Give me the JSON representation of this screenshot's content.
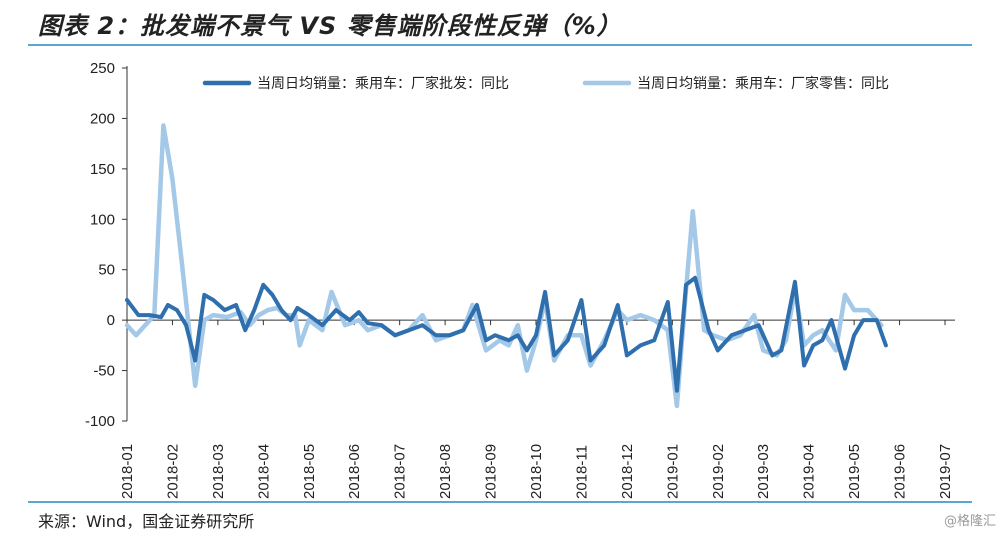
{
  "header": {
    "title": "图表 2：批发端不景气 VS 零售端阶段性反弹（%）"
  },
  "footer": {
    "source": "来源：Wind，国金证券研究所",
    "watermark": "@格隆汇"
  },
  "colors": {
    "series1": "#2f6fad",
    "series2": "#a3c8e8",
    "rule": "#5aa6d6"
  },
  "chart_data": {
    "type": "line",
    "ylim": [
      -100,
      250
    ],
    "yticks": [
      -100,
      -50,
      0,
      50,
      100,
      150,
      200,
      250
    ],
    "xticks": [
      "2018-01",
      "2018-02",
      "2018-03",
      "2018-04",
      "2018-05",
      "2018-06",
      "2018-07",
      "2018-08",
      "2018-09",
      "2018-10",
      "2018-11",
      "2018-12",
      "2019-01",
      "2019-02",
      "2019-03",
      "2019-04",
      "2019-05",
      "2019-06",
      "2019-07"
    ],
    "legend_position": "top",
    "series": [
      {
        "name": "当周日均销量：乘用车：厂家批发：同比",
        "points": [
          [
            0,
            20
          ],
          [
            0.25,
            5
          ],
          [
            0.5,
            5
          ],
          [
            0.75,
            3
          ],
          [
            0.9,
            15
          ],
          [
            1.1,
            10
          ],
          [
            1.3,
            -5
          ],
          [
            1.5,
            -40
          ],
          [
            1.7,
            25
          ],
          [
            1.9,
            20
          ],
          [
            2.15,
            10
          ],
          [
            2.4,
            15
          ],
          [
            2.6,
            -10
          ],
          [
            2.8,
            10
          ],
          [
            3.0,
            35
          ],
          [
            3.2,
            25
          ],
          [
            3.4,
            10
          ],
          [
            3.6,
            0
          ],
          [
            3.75,
            12
          ],
          [
            4.0,
            5
          ],
          [
            4.3,
            -5
          ],
          [
            4.6,
            10
          ],
          [
            4.9,
            0
          ],
          [
            5.1,
            8
          ],
          [
            5.3,
            -3
          ],
          [
            5.6,
            -5
          ],
          [
            5.9,
            -15
          ],
          [
            6.2,
            -10
          ],
          [
            6.5,
            -5
          ],
          [
            6.8,
            -15
          ],
          [
            7.1,
            -15
          ],
          [
            7.4,
            -10
          ],
          [
            7.7,
            15
          ],
          [
            7.9,
            -20
          ],
          [
            8.1,
            -15
          ],
          [
            8.4,
            -20
          ],
          [
            8.6,
            -15
          ],
          [
            8.8,
            -30
          ],
          [
            9.0,
            -15
          ],
          [
            9.2,
            28
          ],
          [
            9.4,
            -35
          ],
          [
            9.7,
            -20
          ],
          [
            10.0,
            20
          ],
          [
            10.2,
            -40
          ],
          [
            10.5,
            -25
          ],
          [
            10.8,
            15
          ],
          [
            11.0,
            -35
          ],
          [
            11.3,
            -25
          ],
          [
            11.6,
            -20
          ],
          [
            11.9,
            18
          ],
          [
            12.1,
            -70
          ],
          [
            12.3,
            35
          ],
          [
            12.5,
            42
          ],
          [
            12.8,
            -10
          ],
          [
            13.0,
            -30
          ],
          [
            13.3,
            -15
          ],
          [
            13.6,
            -10
          ],
          [
            13.9,
            -5
          ],
          [
            14.2,
            -35
          ],
          [
            14.4,
            -30
          ],
          [
            14.7,
            38
          ],
          [
            14.9,
            -45
          ],
          [
            15.1,
            -25
          ],
          [
            15.3,
            -20
          ],
          [
            15.5,
            0
          ],
          [
            15.8,
            -48
          ],
          [
            16.0,
            -15
          ],
          [
            16.2,
            0
          ],
          [
            16.5,
            0
          ],
          [
            16.7,
            -25
          ]
        ]
      },
      {
        "name": "当周日均销量：乘用车：厂家零售：同比",
        "points": [
          [
            0,
            -5
          ],
          [
            0.2,
            -15
          ],
          [
            0.4,
            -5
          ],
          [
            0.6,
            5
          ],
          [
            0.8,
            193
          ],
          [
            1.0,
            140
          ],
          [
            1.2,
            60
          ],
          [
            1.5,
            -65
          ],
          [
            1.7,
            0
          ],
          [
            1.9,
            5
          ],
          [
            2.2,
            3
          ],
          [
            2.5,
            8
          ],
          [
            2.7,
            -5
          ],
          [
            2.9,
            5
          ],
          [
            3.1,
            10
          ],
          [
            3.3,
            12
          ],
          [
            3.5,
            5
          ],
          [
            3.7,
            5
          ],
          [
            3.8,
            -25
          ],
          [
            4.0,
            0
          ],
          [
            4.3,
            -10
          ],
          [
            4.5,
            28
          ],
          [
            4.8,
            -5
          ],
          [
            5.1,
            0
          ],
          [
            5.3,
            -10
          ],
          [
            5.6,
            -5
          ],
          [
            5.9,
            -15
          ],
          [
            6.2,
            -10
          ],
          [
            6.5,
            5
          ],
          [
            6.8,
            -20
          ],
          [
            7.1,
            -15
          ],
          [
            7.4,
            -10
          ],
          [
            7.6,
            15
          ],
          [
            7.9,
            -30
          ],
          [
            8.2,
            -20
          ],
          [
            8.4,
            -25
          ],
          [
            8.6,
            -5
          ],
          [
            8.8,
            -50
          ],
          [
            9.0,
            -20
          ],
          [
            9.2,
            20
          ],
          [
            9.4,
            -40
          ],
          [
            9.7,
            -15
          ],
          [
            10.0,
            -15
          ],
          [
            10.2,
            -45
          ],
          [
            10.5,
            -20
          ],
          [
            10.8,
            10
          ],
          [
            11.0,
            0
          ],
          [
            11.3,
            5
          ],
          [
            11.6,
            0
          ],
          [
            11.9,
            -10
          ],
          [
            12.1,
            -85
          ],
          [
            12.3,
            30
          ],
          [
            12.45,
            108
          ],
          [
            12.7,
            -10
          ],
          [
            12.9,
            -15
          ],
          [
            13.2,
            -20
          ],
          [
            13.5,
            -15
          ],
          [
            13.8,
            5
          ],
          [
            14.0,
            -30
          ],
          [
            14.3,
            -35
          ],
          [
            14.5,
            -20
          ],
          [
            14.7,
            30
          ],
          [
            14.9,
            -25
          ],
          [
            15.1,
            -15
          ],
          [
            15.3,
            -10
          ],
          [
            15.6,
            -30
          ],
          [
            15.8,
            25
          ],
          [
            16.0,
            10
          ],
          [
            16.3,
            10
          ],
          [
            16.6,
            -5
          ]
        ]
      }
    ]
  }
}
